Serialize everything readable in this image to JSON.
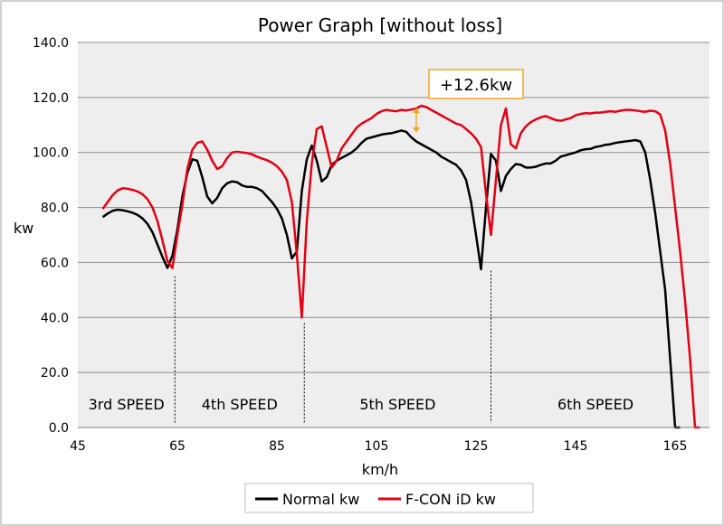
{
  "chart_data": {
    "type": "line",
    "title": "Power Graph [without loss]",
    "xlabel": "km/h",
    "ylabel": "kw",
    "xlim": [
      45,
      170
    ],
    "ylim": [
      0,
      140
    ],
    "x_ticks": [
      "45",
      "65",
      "85",
      "105",
      "125",
      "145",
      "165"
    ],
    "y_ticks": [
      "0.0",
      "20.0",
      "40.0",
      "60.0",
      "80.0",
      "100.0",
      "120.0",
      "140.0"
    ],
    "grid": "horizontal",
    "legend_position": "bottom",
    "series": [
      {
        "name": "Normal kw",
        "color": "#000000",
        "points": [
          [
            50,
            76.5
          ],
          [
            51,
            77.8
          ],
          [
            52,
            78.8
          ],
          [
            53,
            79.2
          ],
          [
            54,
            79.0
          ],
          [
            55,
            78.6
          ],
          [
            56,
            78.1
          ],
          [
            57,
            77.3
          ],
          [
            58,
            76.0
          ],
          [
            59,
            74.0
          ],
          [
            60,
            71.0
          ],
          [
            61,
            66.5
          ],
          [
            62,
            62.0
          ],
          [
            63,
            58.0
          ],
          [
            64,
            62.5
          ],
          [
            65,
            72.0
          ],
          [
            66,
            84.0
          ],
          [
            67,
            92.5
          ],
          [
            68,
            97.5
          ],
          [
            69,
            97.0
          ],
          [
            70,
            91.0
          ],
          [
            71,
            84.0
          ],
          [
            72,
            81.5
          ],
          [
            73,
            83.5
          ],
          [
            74,
            87.0
          ],
          [
            75,
            88.8
          ],
          [
            76,
            89.5
          ],
          [
            77,
            89.2
          ],
          [
            78,
            88.0
          ],
          [
            79,
            87.5
          ],
          [
            80,
            87.5
          ],
          [
            81,
            87.0
          ],
          [
            82,
            86.0
          ],
          [
            83,
            84.0
          ],
          [
            84,
            82.0
          ],
          [
            85,
            79.5
          ],
          [
            86,
            76.0
          ],
          [
            87,
            70.0
          ],
          [
            88,
            61.5
          ],
          [
            89,
            64.0
          ],
          [
            90,
            86.0
          ],
          [
            91,
            97.5
          ],
          [
            92,
            102.5
          ],
          [
            93,
            97.0
          ],
          [
            94,
            89.5
          ],
          [
            95,
            91.0
          ],
          [
            96,
            95.5
          ],
          [
            97,
            97.0
          ],
          [
            98,
            98.0
          ],
          [
            99,
            99.0
          ],
          [
            100,
            100.0
          ],
          [
            101,
            101.5
          ],
          [
            102,
            103.5
          ],
          [
            103,
            105.0
          ],
          [
            104,
            105.5
          ],
          [
            105,
            106.0
          ],
          [
            106,
            106.5
          ],
          [
            107,
            106.8
          ],
          [
            108,
            107.0
          ],
          [
            109,
            107.5
          ],
          [
            110,
            108.0
          ],
          [
            111,
            107.5
          ],
          [
            112,
            105.5
          ],
          [
            113,
            104.0
          ],
          [
            114,
            103.0
          ],
          [
            115,
            102.0
          ],
          [
            116,
            101.0
          ],
          [
            117,
            100.0
          ],
          [
            118,
            98.5
          ],
          [
            119,
            97.5
          ],
          [
            120,
            96.5
          ],
          [
            121,
            95.5
          ],
          [
            122,
            93.5
          ],
          [
            123,
            90.0
          ],
          [
            124,
            82.0
          ],
          [
            125,
            70.0
          ],
          [
            126,
            57.5
          ],
          [
            127,
            80.0
          ],
          [
            128,
            99.5
          ],
          [
            129,
            97.0
          ],
          [
            130,
            86.0
          ],
          [
            131,
            91.5
          ],
          [
            132,
            94.0
          ],
          [
            133,
            95.8
          ],
          [
            134,
            95.5
          ],
          [
            135,
            94.5
          ],
          [
            136,
            94.5
          ],
          [
            137,
            94.8
          ],
          [
            138,
            95.5
          ],
          [
            139,
            96.0
          ],
          [
            140,
            96.0
          ],
          [
            141,
            97.0
          ],
          [
            142,
            98.5
          ],
          [
            143,
            99.0
          ],
          [
            144,
            99.5
          ],
          [
            145,
            100.0
          ],
          [
            146,
            100.8
          ],
          [
            147,
            101.2
          ],
          [
            148,
            101.3
          ],
          [
            149,
            102.0
          ],
          [
            150,
            102.3
          ],
          [
            151,
            102.8
          ],
          [
            152,
            103.0
          ],
          [
            153,
            103.5
          ],
          [
            154,
            103.8
          ],
          [
            155,
            104.0
          ],
          [
            156,
            104.2
          ],
          [
            157,
            104.5
          ],
          [
            158,
            104.0
          ],
          [
            159,
            100.0
          ],
          [
            160,
            90.0
          ],
          [
            161,
            78.0
          ],
          [
            162,
            64.0
          ],
          [
            163,
            50.0
          ],
          [
            164,
            25.0
          ],
          [
            165,
            0.0
          ],
          [
            166,
            0.0
          ]
        ]
      },
      {
        "name": "F-CON iD kw",
        "color": "#e60012",
        "points": [
          [
            50,
            79.5
          ],
          [
            51,
            82.0
          ],
          [
            52,
            84.5
          ],
          [
            53,
            86.2
          ],
          [
            54,
            87.0
          ],
          [
            55,
            86.8
          ],
          [
            56,
            86.4
          ],
          [
            57,
            85.8
          ],
          [
            58,
            84.8
          ],
          [
            59,
            83.0
          ],
          [
            60,
            80.0
          ],
          [
            61,
            75.0
          ],
          [
            62,
            68.0
          ],
          [
            63,
            60.5
          ],
          [
            64,
            58.0
          ],
          [
            65,
            70.0
          ],
          [
            66,
            81.0
          ],
          [
            67,
            94.0
          ],
          [
            68,
            101.0
          ],
          [
            69,
            103.5
          ],
          [
            70,
            104.0
          ],
          [
            71,
            101.0
          ],
          [
            72,
            97.0
          ],
          [
            73,
            94.0
          ],
          [
            74,
            95.0
          ],
          [
            75,
            98.0
          ],
          [
            76,
            100.0
          ],
          [
            77,
            100.3
          ],
          [
            78,
            100.0
          ],
          [
            79,
            99.8
          ],
          [
            80,
            99.3
          ],
          [
            81,
            98.5
          ],
          [
            82,
            97.8
          ],
          [
            83,
            97.2
          ],
          [
            84,
            96.3
          ],
          [
            85,
            95.0
          ],
          [
            86,
            93.0
          ],
          [
            87,
            90.0
          ],
          [
            88,
            82.0
          ],
          [
            89,
            63.0
          ],
          [
            90,
            40.0
          ],
          [
            91,
            75.0
          ],
          [
            92,
            96.0
          ],
          [
            93,
            108.5
          ],
          [
            94,
            109.5
          ],
          [
            95,
            102.0
          ],
          [
            96,
            94.5
          ],
          [
            97,
            97.0
          ],
          [
            98,
            101.5
          ],
          [
            99,
            104.0
          ],
          [
            100,
            106.5
          ],
          [
            101,
            109.0
          ],
          [
            102,
            110.5
          ],
          [
            103,
            111.5
          ],
          [
            104,
            112.5
          ],
          [
            105,
            114.0
          ],
          [
            106,
            115.0
          ],
          [
            107,
            115.5
          ],
          [
            108,
            115.2
          ],
          [
            109,
            115.0
          ],
          [
            110,
            115.5
          ],
          [
            111,
            115.3
          ],
          [
            112,
            115.6
          ],
          [
            113,
            116.0
          ],
          [
            114,
            117.0
          ],
          [
            115,
            116.5
          ],
          [
            116,
            115.5
          ],
          [
            117,
            114.5
          ],
          [
            118,
            113.5
          ],
          [
            119,
            112.5
          ],
          [
            120,
            111.5
          ],
          [
            121,
            110.5
          ],
          [
            122,
            110.0
          ],
          [
            123,
            108.5
          ],
          [
            124,
            107.0
          ],
          [
            125,
            105.0
          ],
          [
            126,
            102.0
          ],
          [
            127,
            85.0
          ],
          [
            128,
            70.0
          ],
          [
            129,
            90.0
          ],
          [
            130,
            110.0
          ],
          [
            131,
            116.0
          ],
          [
            132,
            103.0
          ],
          [
            133,
            101.5
          ],
          [
            134,
            107.0
          ],
          [
            135,
            109.5
          ],
          [
            136,
            111.0
          ],
          [
            137,
            112.0
          ],
          [
            138,
            112.8
          ],
          [
            139,
            113.2
          ],
          [
            140,
            112.5
          ],
          [
            141,
            111.8
          ],
          [
            142,
            111.5
          ],
          [
            143,
            112.0
          ],
          [
            144,
            112.5
          ],
          [
            145,
            113.5
          ],
          [
            146,
            114.0
          ],
          [
            147,
            114.3
          ],
          [
            148,
            114.2
          ],
          [
            149,
            114.5
          ],
          [
            150,
            114.5
          ],
          [
            151,
            114.8
          ],
          [
            152,
            115.0
          ],
          [
            153,
            114.8
          ],
          [
            154,
            115.2
          ],
          [
            155,
            115.5
          ],
          [
            156,
            115.5
          ],
          [
            157,
            115.3
          ],
          [
            158,
            115.0
          ],
          [
            159,
            114.8
          ],
          [
            160,
            115.2
          ],
          [
            161,
            115.0
          ],
          [
            162,
            113.8
          ],
          [
            163,
            108.0
          ],
          [
            164,
            96.0
          ],
          [
            165,
            80.0
          ],
          [
            166,
            64.0
          ],
          [
            167,
            46.0
          ],
          [
            168,
            25.0
          ],
          [
            169,
            0.0
          ],
          [
            170,
            0.0
          ]
        ]
      }
    ],
    "regions": [
      {
        "label": "3rd SPEED",
        "x_start": 45,
        "x_end": 64.5
      },
      {
        "label": "4th SPEED",
        "x_start": 64.5,
        "x_end": 90.5
      },
      {
        "label": "5th SPEED",
        "x_start": 90.5,
        "x_end": 128.0
      },
      {
        "label": "6th SPEED",
        "x_start": 128.0,
        "x_end": 170
      }
    ],
    "dividers": [
      {
        "x": 64.5,
        "y_top": 55
      },
      {
        "x": 90.5,
        "y_top": 38
      },
      {
        "x": 128.0,
        "y_top": 57
      }
    ],
    "annotation": {
      "text": "+12.6kw",
      "x": 113,
      "y_top": 117.0,
      "y_bottom": 106.5,
      "color": "#f5a623"
    }
  }
}
